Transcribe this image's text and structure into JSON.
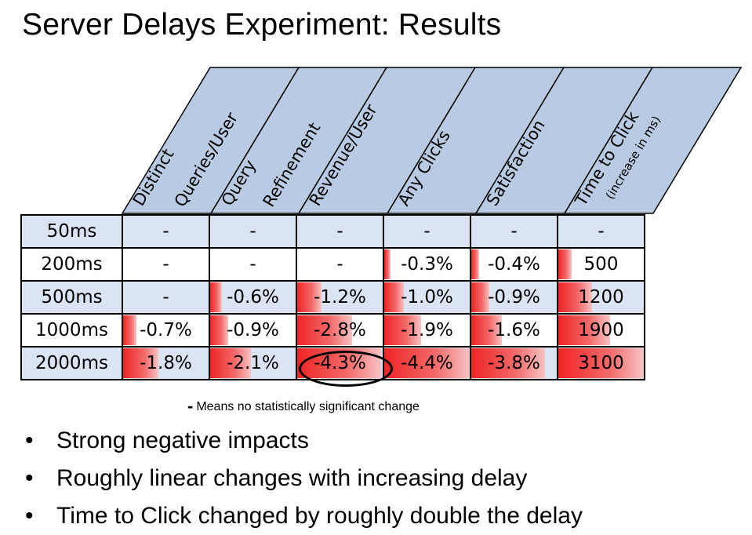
{
  "title": "Server Delays Experiment: Results",
  "columns": [
    {
      "line1": "Distinct",
      "line2": "Queries/User",
      "sub": ""
    },
    {
      "line1": "Query",
      "line2": "Refinement",
      "sub": ""
    },
    {
      "line1": "Revenue/User",
      "line2": "",
      "sub": ""
    },
    {
      "line1": "Any Clicks",
      "line2": "",
      "sub": ""
    },
    {
      "line1": "Satisfaction",
      "line2": "",
      "sub": ""
    },
    {
      "line1": "Time to Click",
      "line2": "",
      "sub": "(increase in ms)"
    }
  ],
  "rows": [
    {
      "label": "50ms",
      "cells": [
        {
          "text": "-",
          "bar": 0
        },
        {
          "text": "-",
          "bar": 0
        },
        {
          "text": "-",
          "bar": 0
        },
        {
          "text": "-",
          "bar": 0
        },
        {
          "text": "-",
          "bar": 0
        },
        {
          "text": "-",
          "bar": 0
        }
      ]
    },
    {
      "label": "200ms",
      "cells": [
        {
          "text": "-",
          "bar": 0
        },
        {
          "text": "-",
          "bar": 0
        },
        {
          "text": "-",
          "bar": 0
        },
        {
          "text": "-0.3%",
          "bar": 0.07
        },
        {
          "text": "-0.4%",
          "bar": 0.09
        },
        {
          "text": "500",
          "bar": 0.16
        }
      ]
    },
    {
      "label": "500ms",
      "cells": [
        {
          "text": "-",
          "bar": 0
        },
        {
          "text": "-0.6%",
          "bar": 0.14
        },
        {
          "text": "-1.2%",
          "bar": 0.28
        },
        {
          "text": "-1.0%",
          "bar": 0.23
        },
        {
          "text": "-0.9%",
          "bar": 0.21
        },
        {
          "text": "1200",
          "bar": 0.39
        }
      ]
    },
    {
      "label": "1000ms",
      "cells": [
        {
          "text": "-0.7%",
          "bar": 0.16
        },
        {
          "text": "-0.9%",
          "bar": 0.21
        },
        {
          "text": "-2.8%",
          "bar": 0.64
        },
        {
          "text": "-1.9%",
          "bar": 0.43
        },
        {
          "text": "-1.6%",
          "bar": 0.36
        },
        {
          "text": "1900",
          "bar": 0.61
        }
      ]
    },
    {
      "label": "2000ms",
      "cells": [
        {
          "text": "-1.8%",
          "bar": 0.41
        },
        {
          "text": "-2.1%",
          "bar": 0.48
        },
        {
          "text": "-4.3%",
          "bar": 0.98
        },
        {
          "text": "-4.4%",
          "bar": 1.0
        },
        {
          "text": "-3.8%",
          "bar": 0.86
        },
        {
          "text": "3100",
          "bar": 1.0
        }
      ]
    }
  ],
  "footnote": {
    "dash": "-",
    "text": "Means no statistically significant change"
  },
  "bullets": [
    "Strong negative impacts",
    "Roughly linear changes with increasing delay",
    "Time to Click changed by roughly double the delay"
  ],
  "bullet_symbol": "•",
  "colors": {
    "header_fill": "#b9cbe3",
    "row_shade": "#dbe4f2",
    "bar_red": "#ef2424"
  }
}
